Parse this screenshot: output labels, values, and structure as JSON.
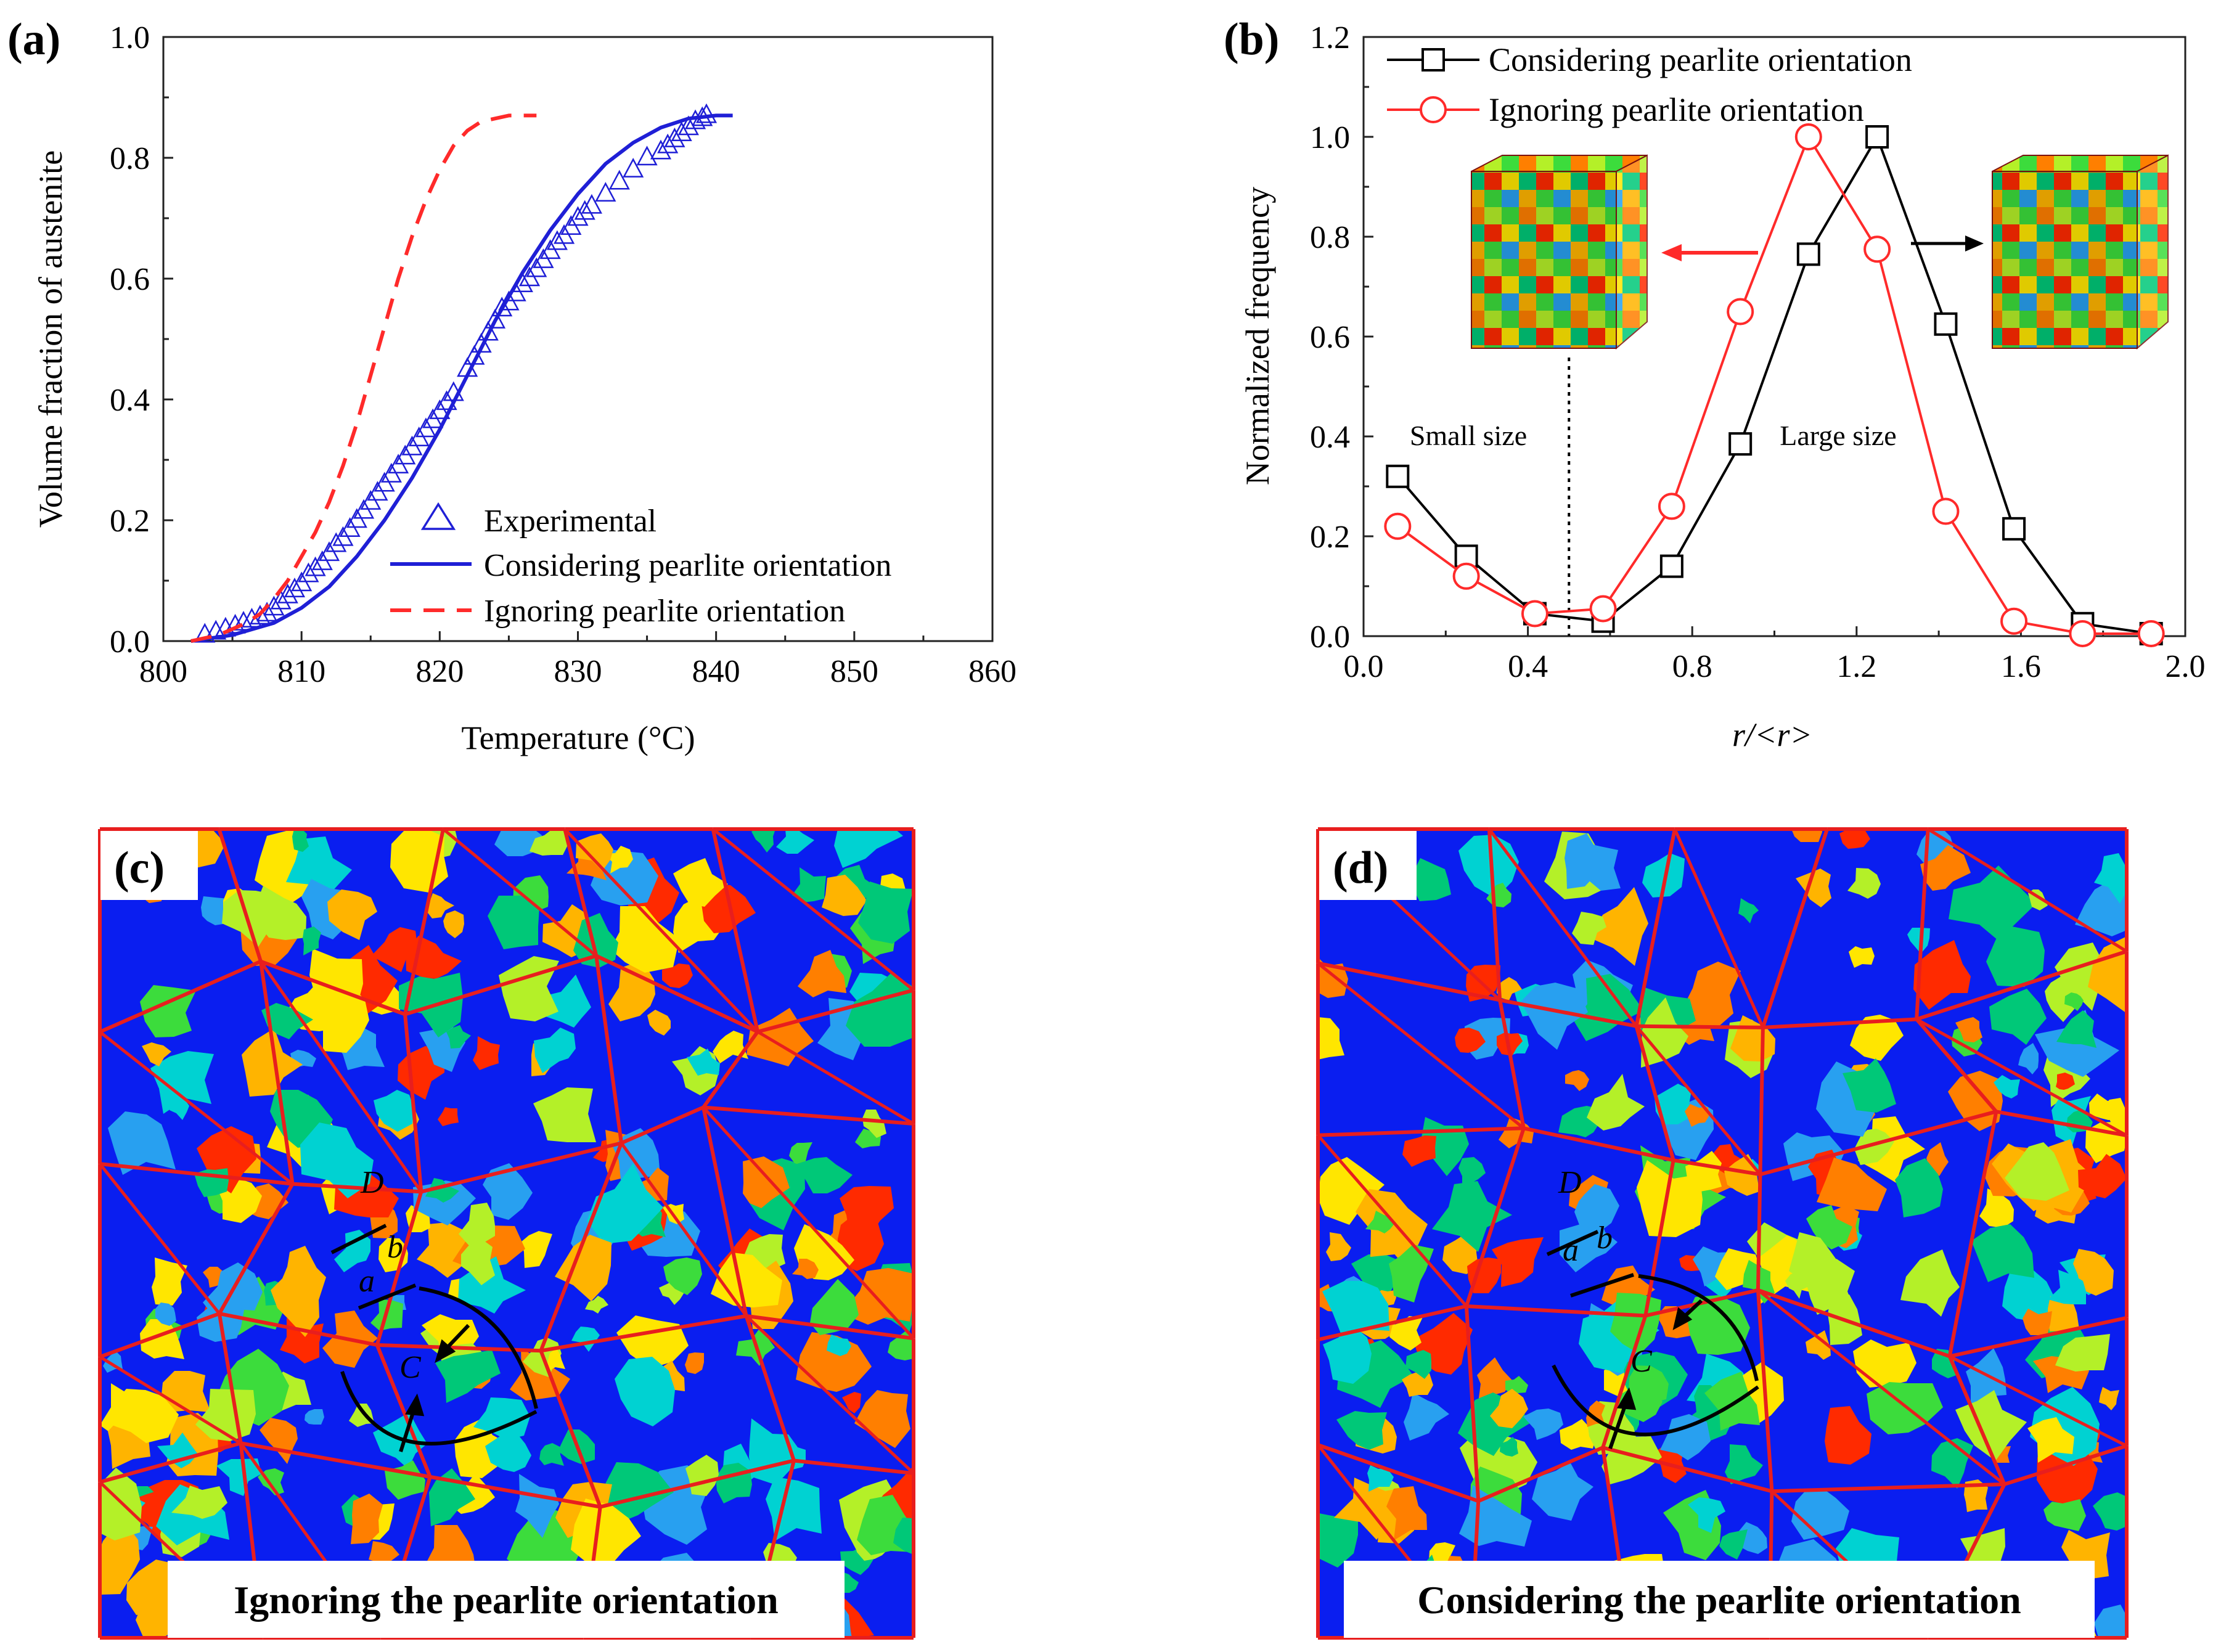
{
  "panels": {
    "a": {
      "label": "(a)"
    },
    "b": {
      "label": "(b)"
    },
    "c": {
      "label": "(c)",
      "caption": "Ignoring the pearlite orientation",
      "annotations": [
        "D",
        "b",
        "a",
        "C"
      ]
    },
    "d": {
      "label": "(d)",
      "caption": "Considering the pearlite orientation",
      "annotations": [
        "D",
        "b",
        "a",
        "C"
      ]
    }
  },
  "colors": {
    "blue": "#1f1fd6",
    "red": "#ff2a2a",
    "black": "#000000",
    "map_blue": "#0a1ef0",
    "grain_boundary": "#e81e1e",
    "grain_palette": [
      "#ff2a00",
      "#ff7f00",
      "#ffb400",
      "#ffe600",
      "#b4f028",
      "#3cdc3c",
      "#00c878",
      "#00d2d2",
      "#28a0f0"
    ]
  },
  "chart_data": [
    {
      "type": "scatter+line",
      "panel": "(a)",
      "title": "",
      "xlabel": "Temperature (°C)",
      "ylabel": "Volume fraction of austenite",
      "xlim": [
        800,
        860
      ],
      "ylim": [
        0.0,
        1.0
      ],
      "xticks": [
        "800",
        "810",
        "820",
        "830",
        "840",
        "850",
        "860"
      ],
      "yticks": [
        "0.0",
        "0.2",
        "0.4",
        "0.6",
        "0.8",
        "1.0"
      ],
      "legend_position": "bottom-right",
      "series": [
        {
          "name": "Experimental",
          "style": "triangle-markers",
          "color": "#1f1fd6",
          "x": [
            803,
            803.8,
            804.5,
            805.2,
            805.8,
            806.4,
            807,
            807.5,
            808,
            808.5,
            809,
            809.5,
            810,
            810.5,
            811,
            811.5,
            812,
            812.5,
            813,
            813.5,
            814,
            814.5,
            815,
            815.5,
            816,
            816.5,
            817,
            817.5,
            818,
            818.5,
            819,
            819.5,
            820,
            820.5,
            821,
            822,
            822.5,
            823,
            823.5,
            824,
            824.5,
            825,
            825.5,
            826,
            826.5,
            827,
            827.5,
            828,
            828.5,
            829,
            829.5,
            830,
            830.5,
            831,
            832,
            833,
            834,
            835,
            836,
            836.5,
            837,
            837.5,
            838,
            838.5,
            839,
            839.3
          ],
          "y": [
            0.01,
            0.015,
            0.02,
            0.025,
            0.03,
            0.035,
            0.04,
            0.045,
            0.055,
            0.065,
            0.075,
            0.085,
            0.095,
            0.11,
            0.12,
            0.13,
            0.145,
            0.16,
            0.17,
            0.185,
            0.2,
            0.215,
            0.23,
            0.245,
            0.26,
            0.275,
            0.29,
            0.305,
            0.32,
            0.335,
            0.35,
            0.365,
            0.38,
            0.395,
            0.41,
            0.45,
            0.47,
            0.49,
            0.51,
            0.53,
            0.55,
            0.56,
            0.575,
            0.59,
            0.6,
            0.615,
            0.63,
            0.645,
            0.66,
            0.67,
            0.685,
            0.7,
            0.71,
            0.72,
            0.74,
            0.76,
            0.78,
            0.8,
            0.81,
            0.82,
            0.83,
            0.84,
            0.85,
            0.86,
            0.865,
            0.87
          ]
        },
        {
          "name": "Considering pearlite orientation",
          "style": "solid",
          "color": "#1f1fd6",
          "x": [
            802,
            805,
            808,
            810,
            812,
            814,
            816,
            818,
            820,
            822,
            824,
            826,
            828,
            830,
            832,
            834,
            836,
            838,
            840,
            841.2
          ],
          "y": [
            0.0,
            0.01,
            0.03,
            0.055,
            0.09,
            0.14,
            0.2,
            0.27,
            0.35,
            0.44,
            0.53,
            0.61,
            0.68,
            0.74,
            0.79,
            0.825,
            0.85,
            0.865,
            0.87,
            0.87
          ]
        },
        {
          "name": "Ignoring pearlite orientation",
          "style": "dashed",
          "color": "#ff2a2a",
          "x": [
            802,
            804,
            806,
            807,
            808,
            809,
            810,
            811,
            812,
            813,
            814,
            815,
            816,
            817,
            818,
            819,
            820,
            821,
            822,
            823,
            824,
            825,
            826,
            827
          ],
          "y": [
            0.0,
            0.01,
            0.03,
            0.045,
            0.07,
            0.1,
            0.14,
            0.18,
            0.23,
            0.29,
            0.36,
            0.44,
            0.52,
            0.6,
            0.67,
            0.73,
            0.78,
            0.82,
            0.845,
            0.86,
            0.865,
            0.87,
            0.87,
            0.87
          ]
        }
      ]
    },
    {
      "type": "line",
      "panel": "(b)",
      "title": "",
      "xlabel": "r/<r>",
      "ylabel": "Normalized frequency",
      "xlim": [
        0.0,
        2.0
      ],
      "ylim": [
        0.0,
        1.2
      ],
      "xticks": [
        "0.0",
        "0.4",
        "0.8",
        "1.2",
        "1.6",
        "2.0"
      ],
      "yticks": [
        "0.0",
        "0.2",
        "0.4",
        "0.6",
        "0.8",
        "1.0",
        "1.2"
      ],
      "legend_position": "top-left",
      "annotations": [
        "Small size",
        "Large size"
      ],
      "divider_x": 0.5,
      "series": [
        {
          "name": "Considering pearlite orientation",
          "marker": "square",
          "color": "#000000",
          "x": [
            0.083,
            0.25,
            0.417,
            0.583,
            0.75,
            0.917,
            1.083,
            1.25,
            1.417,
            1.583,
            1.75,
            1.917
          ],
          "y": [
            0.32,
            0.16,
            0.045,
            0.03,
            0.14,
            0.385,
            0.765,
            1.0,
            0.625,
            0.215,
            0.025,
            0.005
          ]
        },
        {
          "name": "Ignoring pearlite orientation",
          "marker": "circle",
          "color": "#ff2a2a",
          "x": [
            0.083,
            0.25,
            0.417,
            0.583,
            0.75,
            0.917,
            1.083,
            1.25,
            1.417,
            1.583,
            1.75,
            1.917
          ],
          "y": [
            0.22,
            0.12,
            0.045,
            0.055,
            0.26,
            0.65,
            1.0,
            0.775,
            0.25,
            0.03,
            0.005,
            0.005
          ]
        }
      ]
    }
  ]
}
